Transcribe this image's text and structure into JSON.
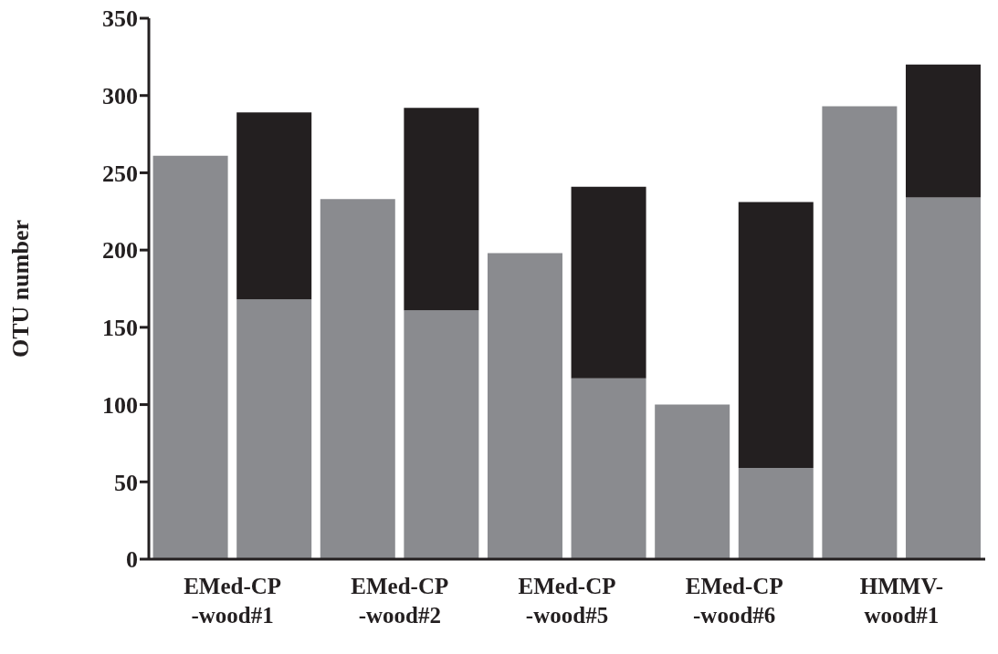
{
  "chart_data": {
    "type": "bar",
    "ylabel": "OTU number",
    "categories": [
      "EMed-CP\n-wood#1",
      null,
      "EMed-CP\n-wood#2",
      null,
      "EMed-CP\n-wood#5",
      null,
      "EMed-CP\n-wood#6",
      null,
      "HMMV-\nwood#1",
      null
    ],
    "stacked": true,
    "series": [
      {
        "color": "#8a8b8f",
        "values": [
          261,
          168,
          233,
          161,
          198,
          117,
          100,
          59,
          293,
          234
        ]
      },
      {
        "color": "#231f20",
        "values": [
          null,
          121,
          null,
          131,
          null,
          124,
          null,
          172,
          null,
          86
        ]
      }
    ],
    "ylim": [
      0,
      350
    ],
    "yticks": [
      0,
      50,
      100,
      150,
      200,
      250,
      300,
      350
    ],
    "grid": false,
    "legend": false
  }
}
